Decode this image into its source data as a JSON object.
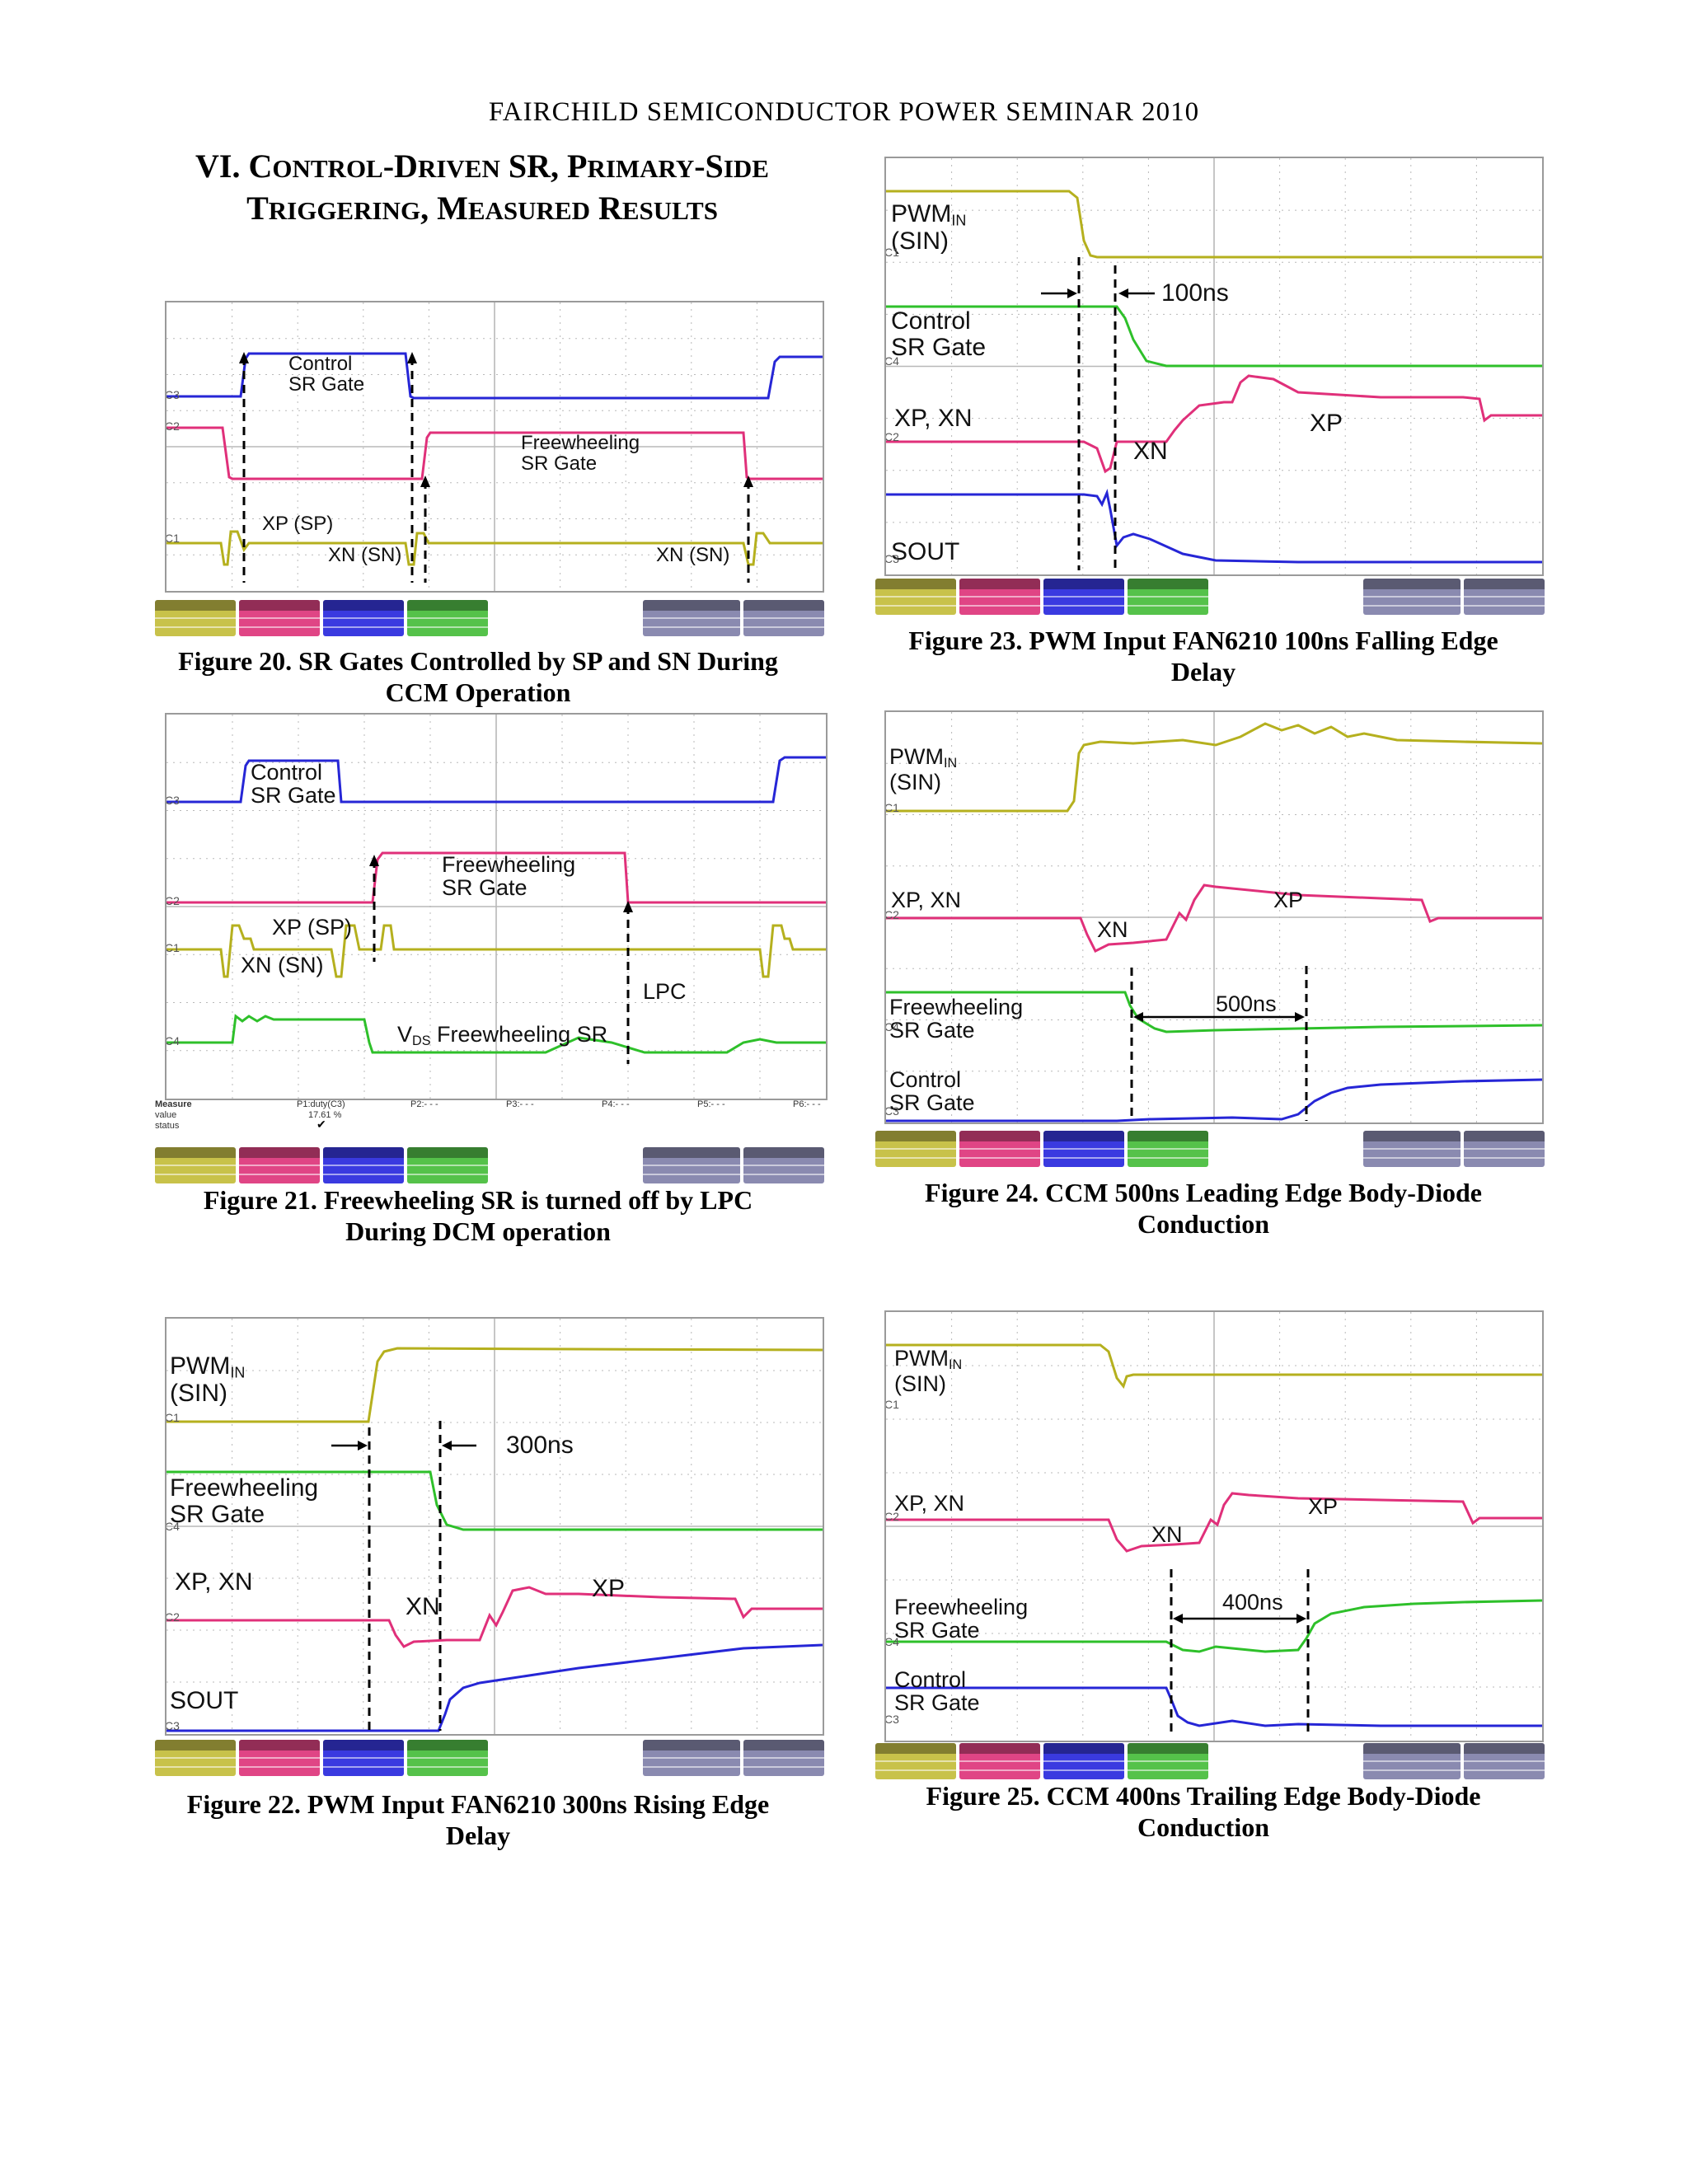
{
  "header": {
    "running_head": "FAIRCHILD SEMICONDUCTOR POWER SEMINAR 2010"
  },
  "section": {
    "numeral": "VI.",
    "title_line1": "Control-Driven SR, Primary-Side",
    "title_line2": "Triggering, Measured Results",
    "title_line1_display": [
      "C",
      "ONTROL",
      "-D",
      "RIVEN",
      " SR, P",
      "RIMARY",
      "-S",
      "IDE"
    ],
    "title_line2_display": [
      "T",
      "RIGGERING",
      ", M",
      "EASURED",
      " R",
      "ESULTS"
    ]
  },
  "colors": {
    "ch1": "#b5b01e",
    "ch2": "#e0307a",
    "ch3": "#2626d6",
    "ch4": "#2ec02a",
    "grid": "#b8b8b8"
  },
  "figures": {
    "fig20": {
      "caption_line1": "Figure 20. SR Gates Controlled by SP and SN During",
      "caption_line2": "CCM Operation",
      "labels": {
        "control1": "Control",
        "control2": "SR Gate",
        "fw1": "Freewheeling",
        "fw2": "SR Gate",
        "xp": "XP (SP)",
        "xn1": "XN (SN)",
        "xn2": "XN (SN)"
      },
      "ch_tags": [
        "C3",
        "C2",
        "C1"
      ]
    },
    "fig21": {
      "caption_line1": "Figure 21. Freewheeling SR is turned off by LPC",
      "caption_line2": "During DCM operation",
      "labels": {
        "control1": "Control",
        "control2": "SR Gate",
        "fw1": "Freewheeling",
        "fw2": "SR Gate",
        "xp": "XP (SP)",
        "xn": "XN (SN)",
        "lpc": "LPC",
        "vds": "V",
        "vds_sub": "DS",
        "vds_rest": " Freewheeling SR"
      },
      "measure": {
        "head": "Measure",
        "value": "value",
        "status": "status",
        "p1": "P1:duty(C3)",
        "p1_value": "17.61 %",
        "p2": "P2:- - -",
        "p3": "P3:- - -",
        "p4": "P4:- - -",
        "p5": "P5:- - -",
        "p6": "P6:- - -"
      },
      "ch_tags": [
        "C3",
        "C2",
        "C1",
        "C4"
      ]
    },
    "fig22": {
      "caption_line1": "Figure 22. PWM Input FAN6210 300ns Rising Edge",
      "caption_line2": "Delay",
      "labels": {
        "pwm": "PWM",
        "pwm_sub": "IN",
        "sin": "(SIN)",
        "delay": "300ns",
        "fw1": "Freewheeling",
        "fw2": "SR Gate",
        "xpxn": "XP, XN",
        "xn": "XN",
        "xp": "XP",
        "sout": "SOUT"
      },
      "ch_tags": [
        "C1",
        "C4",
        "C2",
        "C3"
      ]
    },
    "fig23": {
      "caption_line1": "Figure 23. PWM Input FAN6210 100ns Falling Edge",
      "caption_line2": "Delay",
      "labels": {
        "pwm": "PWM",
        "pwm_sub": "IN",
        "sin": "(SIN)",
        "delay": "100ns",
        "control1": "Control",
        "control2": "SR Gate",
        "xpxn": "XP, XN",
        "xn": "XN",
        "xp": "XP",
        "sout": "SOUT"
      },
      "ch_tags": [
        "C1",
        "C4",
        "C2",
        "C3"
      ]
    },
    "fig24": {
      "caption_line1": "Figure 24. CCM 500ns Leading Edge Body-Diode",
      "caption_line2": "Conduction",
      "labels": {
        "pwm": "PWM",
        "pwm_sub": "IN",
        "sin": "(SIN)",
        "xpxn": "XP, XN",
        "xn": "XN",
        "xp": "XP",
        "fw1": "Freewheeling",
        "fw2": "SR Gate",
        "delay": "500ns",
        "control1": "Control",
        "control2": "SR Gate"
      },
      "ch_tags": [
        "C1",
        "C2",
        "C4",
        "C3"
      ]
    },
    "fig25": {
      "caption_line1": "Figure 25. CCM 400ns Trailing Edge Body-Diode",
      "caption_line2": "Conduction",
      "labels": {
        "pwm": "PWM",
        "pwm_sub": "IN",
        "sin": "(SIN)",
        "xpxn": "XP, XN",
        "xn": "XN",
        "xp": "XP",
        "fw1": "Freewheeling",
        "fw2": "SR Gate",
        "delay": "400ns",
        "control1": "Control",
        "control2": "SR Gate"
      },
      "ch_tags": [
        "C1",
        "C2",
        "C4",
        "C3"
      ]
    }
  }
}
